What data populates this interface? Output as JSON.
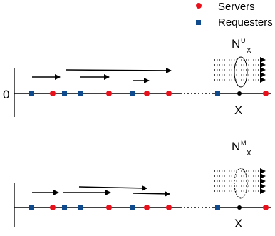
{
  "legend": {
    "servers_label": "Servers",
    "requesters_label": "Requesters",
    "server_color": "#e8101a",
    "requester_color": "#0e4a8c"
  },
  "top_panel": {
    "origin_label": "0",
    "point_label": "X",
    "flow_label": {
      "base": "N",
      "superscript": "U",
      "subscript": "X"
    }
  },
  "bottom_panel": {
    "point_label": "X",
    "flow_label": {
      "base": "N",
      "superscript": "M",
      "subscript": "X"
    }
  }
}
